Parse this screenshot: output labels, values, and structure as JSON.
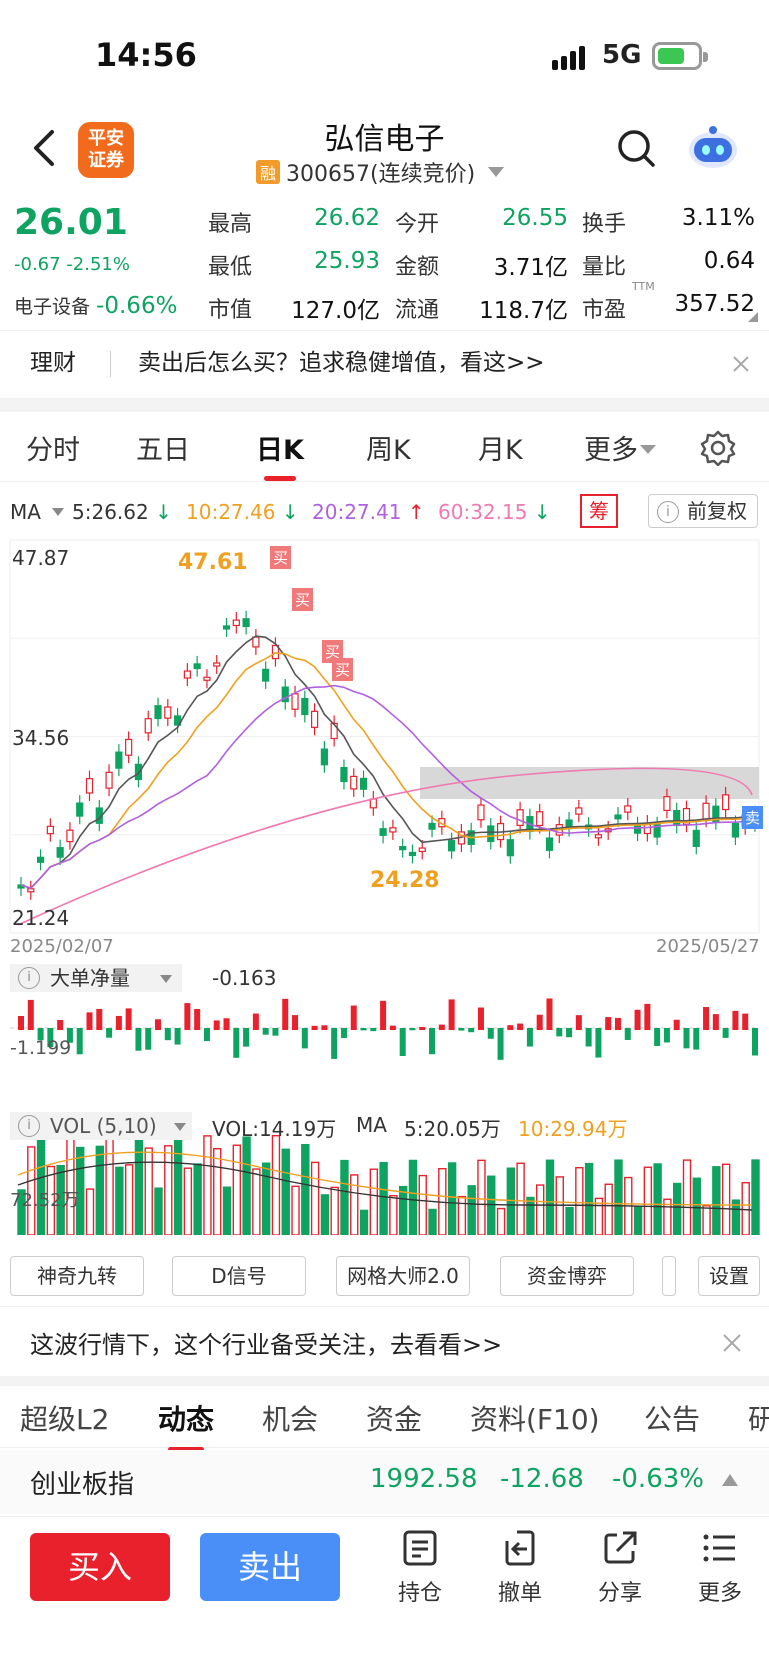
{
  "status_bar": {
    "time": "14:56",
    "network": "5G"
  },
  "header": {
    "logo_text_1": "平安",
    "logo_text_2": "证券",
    "title": "弘信电子",
    "badge": "融",
    "code": "300657(连续竞价)"
  },
  "quote": {
    "price": "26.01",
    "change": "-0.67 -2.51%",
    "industry_label": "电子设备",
    "industry_change": "-0.66%",
    "rows": [
      [
        {
          "label": "最高",
          "value": "26.62",
          "color": "g"
        },
        {
          "label": "今开",
          "value": "26.55",
          "color": "g"
        },
        {
          "label": "换手",
          "value": "3.11%",
          "color": "k"
        }
      ],
      [
        {
          "label": "最低",
          "value": "25.93",
          "color": "g"
        },
        {
          "label": "金额",
          "value": "3.71亿",
          "color": "k"
        },
        {
          "label": "量比",
          "value": "0.64",
          "color": "k"
        }
      ],
      [
        {
          "label": "市值",
          "value": "127.0亿",
          "color": "k"
        },
        {
          "label": "流通",
          "value": "118.7亿",
          "color": "k"
        },
        {
          "label": "市盈",
          "value": "357.52",
          "color": "k"
        }
      ]
    ],
    "ttm": "TTM"
  },
  "banner1": {
    "tag": "理财",
    "text": "卖出后怎么买？追求稳健增值，看这>>"
  },
  "ktabs": [
    "分时",
    "五日",
    "日K",
    "周K",
    "月K",
    "更多"
  ],
  "ktab_active": "日K",
  "ma_line": {
    "label": "MA",
    "ma5": "5:26.62",
    "ma10": "10:27.46",
    "ma20": "20:27.41",
    "ma60": "60:32.15"
  },
  "chou_label": "筹",
  "fuquan_label": "前复权",
  "chart_data": {
    "type": "candlestick",
    "y_top_label": "47.87",
    "y_mid_label": "34.56",
    "y_low_label": "21.24",
    "ylim": [
      21.24,
      47.87
    ],
    "x_start": "2025/02/07",
    "x_end": "2025/05/27",
    "high_annotation": "47.61",
    "low_annotation": "24.28",
    "signals": [
      "买",
      "买",
      "买",
      "买"
    ],
    "right_signal": "卖",
    "colors": {
      "up": "#e8212d",
      "down": "#0fa361",
      "ma5": "#555555",
      "ma10": "#f0a020",
      "ma20": "#b060e0",
      "ma60": "#f07ab0"
    }
  },
  "flow_panel": {
    "label": "大单净量",
    "value": "-0.163",
    "axis": "-1.199"
  },
  "vol_panel": {
    "label": "VOL (5,10)",
    "vol": "VOL:14.19万",
    "ma_label": "MA",
    "ma5": "5:20.05万",
    "ma10": "10:29.94万",
    "axis": "72.52万"
  },
  "tools": [
    "神奇九转",
    "D信号",
    "网格大师2.0",
    "资金博弈",
    "设置"
  ],
  "banner2": {
    "text": "这波行情下，这个行业备受关注，去看看>>"
  },
  "tabs2": [
    "超级L2",
    "动态",
    "机会",
    "资金",
    "资料(F10)",
    "公告",
    "研"
  ],
  "tab2_active": "动态",
  "index": {
    "name": "创业板指",
    "value": "1992.58",
    "change": "-12.68",
    "pct": "-0.63%"
  },
  "bottom": {
    "buy": "买入",
    "sell": "卖出",
    "items": [
      "持仓",
      "撤单",
      "分享",
      "更多"
    ]
  }
}
